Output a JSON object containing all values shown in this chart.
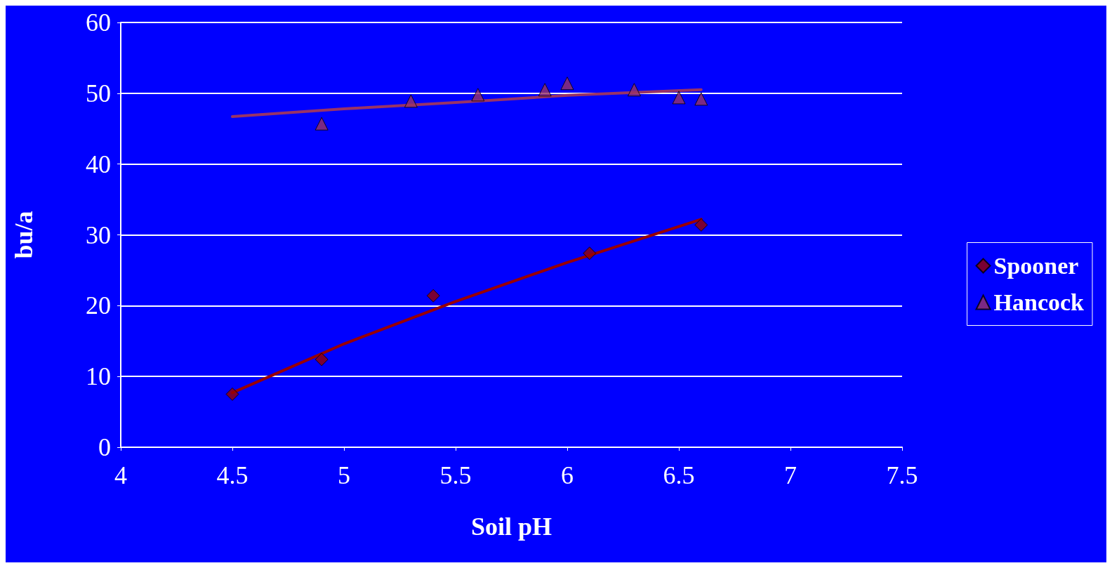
{
  "chart_data": {
    "type": "scatter",
    "xlabel": "Soil pH",
    "ylabel": "bu/a",
    "xlim": [
      4,
      7.5
    ],
    "xticks": [
      4,
      4.5,
      5,
      5.5,
      6,
      6.5,
      7,
      7.5
    ],
    "ylim": [
      0,
      60
    ],
    "yticks": [
      0,
      10,
      20,
      30,
      40,
      50,
      60
    ],
    "grid": "y",
    "legend": "right",
    "series": [
      {
        "name": "Spooner",
        "color": "#990000",
        "marker": "diamond",
        "x": [
          4.5,
          4.9,
          5.4,
          6.1,
          6.6
        ],
        "values": [
          7.5,
          12.4,
          21.4,
          27.4,
          31.4
        ]
      },
      {
        "name": "Hancock",
        "color": "#993366",
        "marker": "triangle",
        "x": [
          4.9,
          5.3,
          5.6,
          5.9,
          6.0,
          6.3,
          6.5,
          6.6
        ],
        "values": [
          45.7,
          48.9,
          49.8,
          50.5,
          51.4,
          50.5,
          49.4,
          49.2
        ]
      },
      {
        "type": "line",
        "color": "#990000",
        "x": [
          4.5,
          5.0,
          5.5,
          6.0,
          6.6
        ],
        "values": [
          7.7,
          14.6,
          20.6,
          26.1,
          32.2
        ]
      },
      {
        "type": "line",
        "color": "#993366",
        "x": [
          4.5,
          5.0,
          5.5,
          6.0,
          6.6
        ],
        "values": [
          46.7,
          47.8,
          48.7,
          49.7,
          50.5
        ]
      }
    ]
  }
}
